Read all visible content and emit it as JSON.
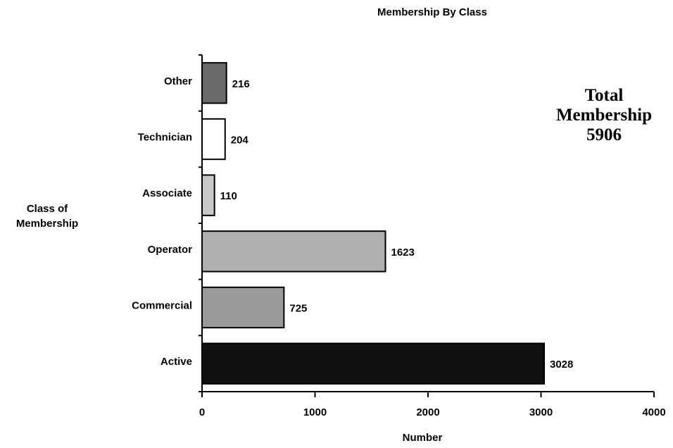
{
  "chart_data": {
    "type": "barh",
    "title": "Membership By Class",
    "x_label": "Number",
    "y_label": "Class of Membership",
    "categories": [
      "Active",
      "Commercial",
      "Operator",
      "Associate",
      "Technician",
      "Other"
    ],
    "values": [
      3028,
      725,
      1623,
      110,
      204,
      216
    ],
    "colors": [
      "#111111",
      "#9a9a9a",
      "#b0b0b0",
      "#c8c8c8",
      "#ffffff",
      "#6a6a6a"
    ],
    "xlim": [
      0,
      4000
    ],
    "xticks": [
      0,
      1000,
      2000,
      3000,
      4000
    ],
    "annotation": {
      "label": "Total Membership",
      "value": 5906
    }
  }
}
